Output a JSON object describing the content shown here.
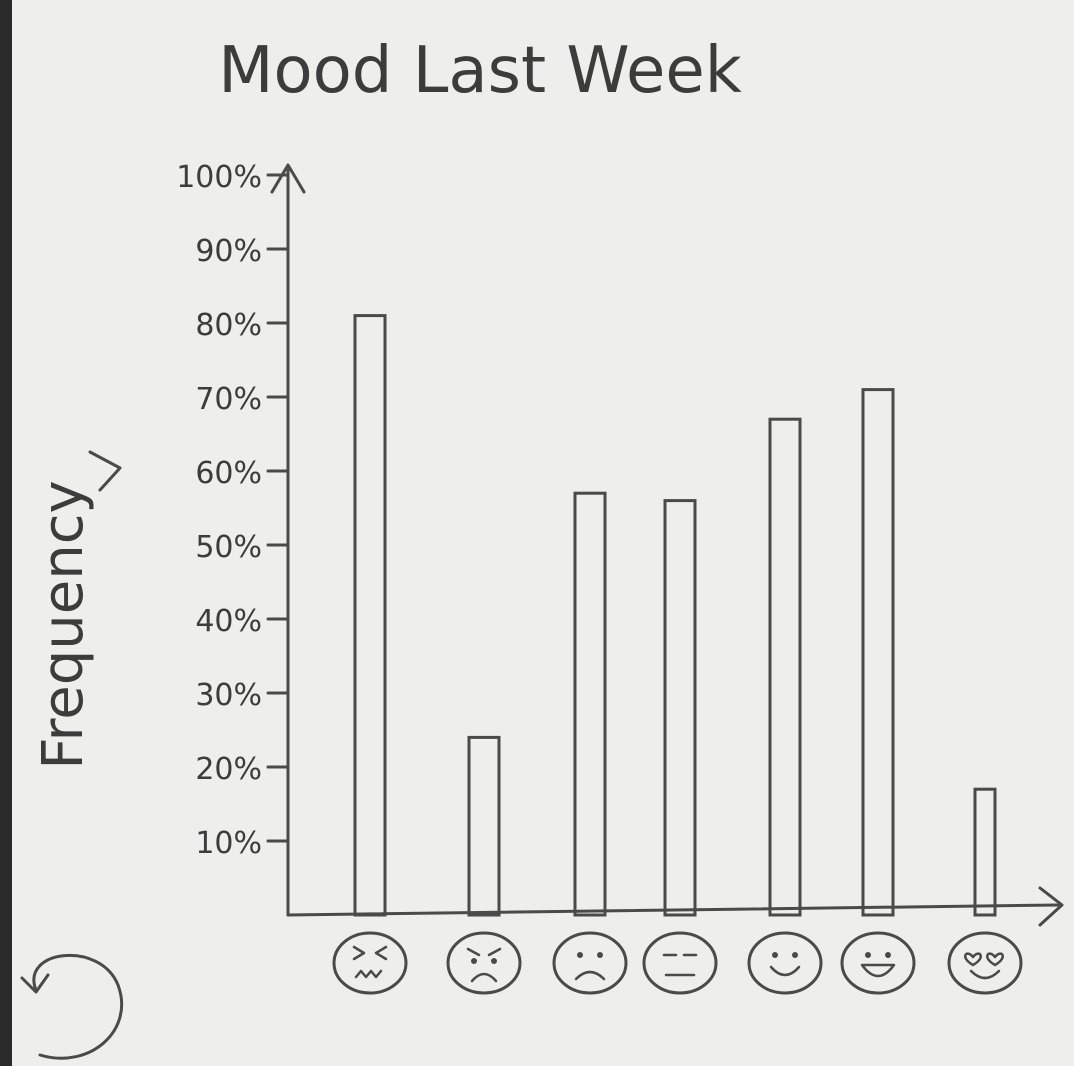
{
  "chart_data": {
    "type": "bar",
    "title": "Mood Last Week",
    "xlabel": "",
    "ylabel": "Frequency",
    "ylim": [
      0,
      100
    ],
    "y_ticks": [
      "10%",
      "20%",
      "30%",
      "40%",
      "50%",
      "60%",
      "70%",
      "80%",
      "90%",
      "100%"
    ],
    "categories": [
      "angry-frustrated-face",
      "angry-face",
      "sad-face",
      "neutral-face",
      "smiling-face",
      "laughing-face",
      "heart-eyes-face"
    ],
    "values": [
      81,
      24,
      57,
      56,
      67,
      71,
      17
    ],
    "grid": false,
    "legend": "none"
  },
  "colors": {
    "pencil": "#4a4a4a",
    "paper": "#eeeeec"
  }
}
